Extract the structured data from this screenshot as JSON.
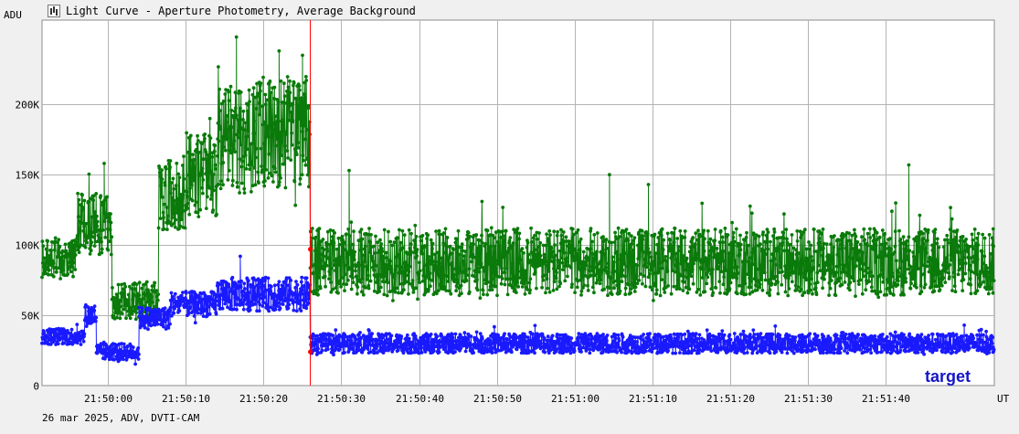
{
  "window": {
    "title": "Light Curve - Aperture Photometry, Average Background",
    "icon": "chart-icon"
  },
  "footer": {
    "text": "26 mar 2025, ADV, DVTI-CAM"
  },
  "chart_data": {
    "type": "line",
    "title": "Light Curve - Aperture Photometry, Average Background",
    "xlabel": "UT",
    "ylabel": "ADU",
    "ylim": [
      0,
      260000
    ],
    "xlim": [
      "21:49:51.5",
      "21:51:54.0"
    ],
    "x_ticks": [
      "21:50:00",
      "21:50:10",
      "21:50:20",
      "21:50:30",
      "21:50:40",
      "21:50:50",
      "21:51:00",
      "21:51:10",
      "21:51:20",
      "21:51:30",
      "21:51:40"
    ],
    "y_ticks": [
      {
        "value": 0,
        "label": "0"
      },
      {
        "value": 50000,
        "label": "50K"
      },
      {
        "value": 100000,
        "label": "100K"
      },
      {
        "value": 150000,
        "label": "150K"
      },
      {
        "value": 200000,
        "label": "200K"
      }
    ],
    "grid": true,
    "marker_time": "21:50:26",
    "colors": {
      "target": "#1a1aff",
      "comparison": "#0a7a0a",
      "marker": "#ff0000",
      "grid": "#b4b4b4"
    },
    "annotations": [
      {
        "text": "target",
        "series": "target",
        "placement": "bottom-right"
      }
    ],
    "series": [
      {
        "name": "",
        "role": "comparison",
        "color": "#0a7a0a",
        "segments": [
          {
            "t0": "21:49:51.5",
            "t1": "21:49:56.0",
            "mean": 90000,
            "amp": 14000
          },
          {
            "t0": "21:49:56.0",
            "t1": "21:50:00.5",
            "mean": 115000,
            "amp": 22000
          },
          {
            "t0": "21:50:00.5",
            "t1": "21:50:03.5",
            "mean": 60000,
            "amp": 13000
          },
          {
            "t0": "21:50:03.5",
            "t1": "21:50:06.5",
            "mean": 60000,
            "amp": 14000
          },
          {
            "t0": "21:50:06.5",
            "t1": "21:50:10.0",
            "mean": 135000,
            "amp": 25000
          },
          {
            "t0": "21:50:10.0",
            "t1": "21:50:14.0",
            "mean": 150000,
            "amp": 30000
          },
          {
            "t0": "21:50:14.0",
            "t1": "21:50:19.0",
            "mean": 175000,
            "amp": 38000
          },
          {
            "t0": "21:50:19.0",
            "t1": "21:50:26.0",
            "mean": 180000,
            "amp": 40000
          },
          {
            "t0": "21:50:26.0",
            "t1": "21:51:54.0",
            "mean": 88000,
            "amp": 24000
          }
        ],
        "peaks": [
          {
            "t": "21:49:59.5",
            "v": 158000
          },
          {
            "t": "21:50:16.5",
            "v": 248000
          },
          {
            "t": "21:50:22.0",
            "v": 238000
          },
          {
            "t": "21:50:25.0",
            "v": 235000
          },
          {
            "t": "21:50:31.0",
            "v": 153000
          },
          {
            "t": "21:51:04.5",
            "v": 150000
          },
          {
            "t": "21:51:09.5",
            "v": 143000
          },
          {
            "t": "21:51:43.0",
            "v": 157000
          }
        ]
      },
      {
        "name": "target",
        "role": "target",
        "color": "#1a1aff",
        "segments": [
          {
            "t0": "21:49:51.5",
            "t1": "21:49:57.0",
            "mean": 35000,
            "amp": 6000
          },
          {
            "t0": "21:49:57.0",
            "t1": "21:49:58.5",
            "mean": 50000,
            "amp": 8000
          },
          {
            "t0": "21:49:58.5",
            "t1": "21:50:04.0",
            "mean": 24000,
            "amp": 6000
          },
          {
            "t0": "21:50:04.0",
            "t1": "21:50:08.0",
            "mean": 48000,
            "amp": 8000
          },
          {
            "t0": "21:50:08.0",
            "t1": "21:50:14.0",
            "mean": 58000,
            "amp": 9000
          },
          {
            "t0": "21:50:14.0",
            "t1": "21:50:26.0",
            "mean": 65000,
            "amp": 12000
          },
          {
            "t0": "21:50:26.0",
            "t1": "21:51:54.0",
            "mean": 30000,
            "amp": 7000
          }
        ],
        "peaks": [
          {
            "t": "21:50:17.0",
            "v": 92000
          },
          {
            "t": "21:50:26.0",
            "v": 97000
          },
          {
            "t": "21:50:26.2",
            "v": 23000
          }
        ]
      }
    ]
  }
}
